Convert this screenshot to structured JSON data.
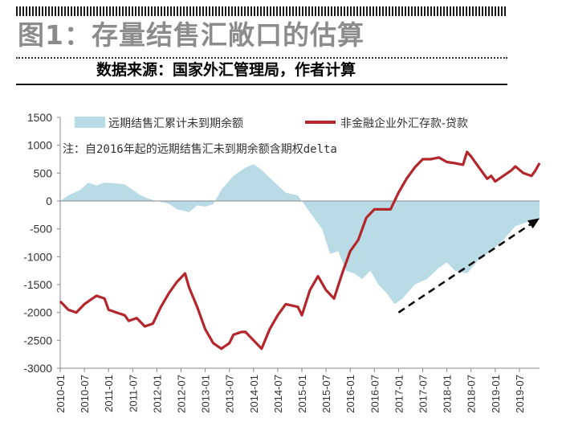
{
  "header": {
    "title": "图1：存量结售汇敞口的估算",
    "source": "数据来源：国家外汇管理局，作者计算"
  },
  "colors": {
    "area": "#b9dbe6",
    "line": "#b3262b",
    "axis": "#888888",
    "text": "#333333"
  },
  "chart_data": {
    "type": "line",
    "annotation": "注：自2016年起的远期结售汇未到期余额含期权delta",
    "ylim": [
      -3000,
      1500
    ],
    "yticks": [
      1500,
      1000,
      500,
      0,
      -500,
      -1000,
      -1500,
      -2000,
      -2500,
      -3000
    ],
    "xlim": [
      "2010-01",
      "2019-12"
    ],
    "xticks": [
      "2010-01",
      "2010-07",
      "2011-01",
      "2011-07",
      "2012-01",
      "2012-07",
      "2013-01",
      "2013-07",
      "2014-01",
      "2014-07",
      "2015-01",
      "2015-07",
      "2016-01",
      "2016-07",
      "2017-01",
      "2017-07",
      "2018-01",
      "2018-07",
      "2019-01",
      "2019-07"
    ],
    "grid": false,
    "legend_position": "top",
    "trend_arrow": {
      "from": [
        "2017-01",
        -2000
      ],
      "to": [
        "2019-12",
        -310
      ],
      "style": "dashed"
    },
    "series": [
      {
        "name": "远期结售汇累计未到期余额",
        "type": "area",
        "points": [
          [
            "2010-01",
            0
          ],
          [
            "2010-03",
            100
          ],
          [
            "2010-06",
            200
          ],
          [
            "2010-08",
            330
          ],
          [
            "2010-10",
            280
          ],
          [
            "2010-12",
            330
          ],
          [
            "2011-02",
            320
          ],
          [
            "2011-05",
            300
          ],
          [
            "2011-07",
            200
          ],
          [
            "2011-09",
            100
          ],
          [
            "2011-11",
            40
          ],
          [
            "2012-01",
            0
          ],
          [
            "2012-04",
            -50
          ],
          [
            "2012-06",
            -150
          ],
          [
            "2012-09",
            -200
          ],
          [
            "2012-11",
            -80
          ],
          [
            "2013-01",
            -100
          ],
          [
            "2013-03",
            -60
          ],
          [
            "2013-05",
            200
          ],
          [
            "2013-08",
            450
          ],
          [
            "2013-11",
            600
          ],
          [
            "2014-01",
            660
          ],
          [
            "2014-03",
            560
          ],
          [
            "2014-06",
            350
          ],
          [
            "2014-09",
            150
          ],
          [
            "2014-12",
            100
          ],
          [
            "2015-03",
            -200
          ],
          [
            "2015-06",
            -500
          ],
          [
            "2015-08",
            -950
          ],
          [
            "2015-10",
            -900
          ],
          [
            "2015-12",
            -1250
          ],
          [
            "2016-02",
            -1300
          ],
          [
            "2016-04",
            -1400
          ],
          [
            "2016-06",
            -1250
          ],
          [
            "2016-08",
            -1500
          ],
          [
            "2016-10",
            -1650
          ],
          [
            "2016-12",
            -1850
          ],
          [
            "2017-02",
            -1750
          ],
          [
            "2017-05",
            -1500
          ],
          [
            "2017-08",
            -1400
          ],
          [
            "2017-11",
            -1200
          ],
          [
            "2018-01",
            -1100
          ],
          [
            "2018-03",
            -1250
          ],
          [
            "2018-06",
            -1300
          ],
          [
            "2018-09",
            -1050
          ],
          [
            "2018-12",
            -900
          ],
          [
            "2019-03",
            -700
          ],
          [
            "2019-06",
            -450
          ],
          [
            "2019-09",
            -380
          ],
          [
            "2019-12",
            -330
          ]
        ]
      },
      {
        "name": "非金融企业外汇存款-贷款",
        "type": "line",
        "points": [
          [
            "2010-01",
            -1800
          ],
          [
            "2010-03",
            -1950
          ],
          [
            "2010-05",
            -2000
          ],
          [
            "2010-07",
            -1850
          ],
          [
            "2010-09",
            -1750
          ],
          [
            "2010-10",
            -1700
          ],
          [
            "2010-12",
            -1750
          ],
          [
            "2011-01",
            -1950
          ],
          [
            "2011-03",
            -2000
          ],
          [
            "2011-05",
            -2050
          ],
          [
            "2011-06",
            -2150
          ],
          [
            "2011-08",
            -2100
          ],
          [
            "2011-10",
            -2250
          ],
          [
            "2011-12",
            -2200
          ],
          [
            "2012-02",
            -1900
          ],
          [
            "2012-04",
            -1650
          ],
          [
            "2012-06",
            -1450
          ],
          [
            "2012-08",
            -1300
          ],
          [
            "2012-09",
            -1550
          ],
          [
            "2012-11",
            -1900
          ],
          [
            "2013-01",
            -2300
          ],
          [
            "2013-03",
            -2550
          ],
          [
            "2013-05",
            -2650
          ],
          [
            "2013-07",
            -2550
          ],
          [
            "2013-08",
            -2400
          ],
          [
            "2013-10",
            -2350
          ],
          [
            "2013-11",
            -2350
          ],
          [
            "2014-01",
            -2500
          ],
          [
            "2014-03",
            -2650
          ],
          [
            "2014-05",
            -2300
          ],
          [
            "2014-07",
            -2050
          ],
          [
            "2014-09",
            -1850
          ],
          [
            "2014-12",
            -1900
          ],
          [
            "2015-01",
            -2050
          ],
          [
            "2015-03",
            -1600
          ],
          [
            "2015-05",
            -1350
          ],
          [
            "2015-07",
            -1600
          ],
          [
            "2015-09",
            -1750
          ],
          [
            "2015-11",
            -1300
          ],
          [
            "2016-01",
            -900
          ],
          [
            "2016-03",
            -700
          ],
          [
            "2016-05",
            -300
          ],
          [
            "2016-07",
            -150
          ],
          [
            "2016-09",
            -150
          ],
          [
            "2016-11",
            -150
          ],
          [
            "2017-01",
            150
          ],
          [
            "2017-03",
            400
          ],
          [
            "2017-05",
            600
          ],
          [
            "2017-07",
            750
          ],
          [
            "2017-09",
            750
          ],
          [
            "2017-11",
            780
          ],
          [
            "2018-01",
            700
          ],
          [
            "2018-03",
            680
          ],
          [
            "2018-05",
            650
          ],
          [
            "2018-06",
            880
          ],
          [
            "2018-07",
            800
          ],
          [
            "2018-09",
            600
          ],
          [
            "2018-11",
            400
          ],
          [
            "2018-12",
            450
          ],
          [
            "2019-01",
            350
          ],
          [
            "2019-03",
            450
          ],
          [
            "2019-05",
            550
          ],
          [
            "2019-06",
            620
          ],
          [
            "2019-08",
            500
          ],
          [
            "2019-10",
            450
          ],
          [
            "2019-11",
            550
          ],
          [
            "2019-12",
            680
          ]
        ]
      }
    ]
  }
}
